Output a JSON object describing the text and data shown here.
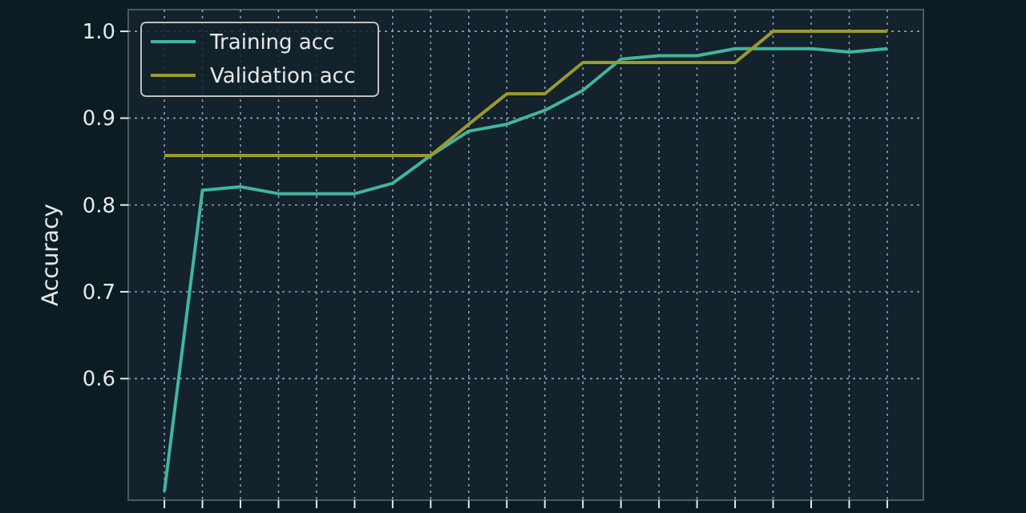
{
  "chart_data": {
    "type": "line",
    "ylabel": "Accuracy",
    "categories": [
      null,
      null,
      null,
      null,
      null,
      null,
      null,
      null,
      null,
      null,
      null,
      null,
      null,
      null,
      null,
      null,
      null,
      null,
      null,
      null
    ],
    "series": [
      {
        "name": "Training acc",
        "color": "#41b59e",
        "values": [
          0.47,
          0.817,
          0.821,
          0.813,
          0.813,
          0.813,
          0.825,
          0.857,
          0.885,
          0.893,
          0.909,
          0.932,
          0.968,
          0.972,
          0.972,
          0.98,
          0.98,
          0.98,
          0.976,
          0.98
        ]
      },
      {
        "name": "Validation acc",
        "color": "#9a9a2e",
        "values": [
          0.857,
          0.857,
          0.857,
          0.857,
          0.857,
          0.857,
          0.857,
          0.857,
          0.893,
          0.928,
          0.928,
          0.964,
          0.964,
          0.964,
          0.964,
          0.964,
          1.0,
          1.0,
          1.0,
          1.0
        ]
      }
    ],
    "ylim": [
      0.46,
      1.025
    ],
    "yticks": [
      0.6,
      0.7,
      0.8,
      0.9,
      {
        "value": 1,
        "label": "1.0"
      }
    ],
    "grid": true,
    "legend": "top left",
    "marker": "none",
    "line_style": "solid"
  }
}
